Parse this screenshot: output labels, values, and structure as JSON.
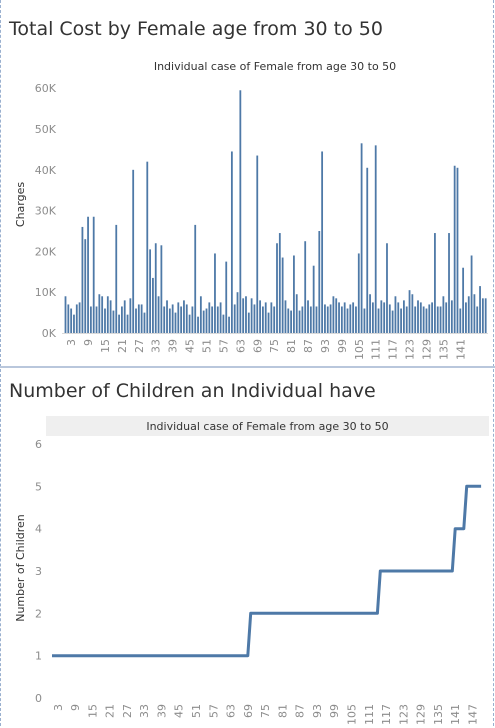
{
  "colors": {
    "mark": "#4e79a7",
    "axis_text": "#8c8c8c",
    "grid": "#e6e6e6",
    "header_bg": "#efefef"
  },
  "panel1": {
    "title": "Total Cost by Female age from 30 to 50"
  },
  "panel2": {
    "title": "Number of Children an Individual have"
  },
  "chart_data": [
    {
      "type": "bar",
      "header": "Individual case of Female from age 30 to 50",
      "ylabel": "Charges",
      "ylim": [
        0,
        63000
      ],
      "yticks": [
        0,
        10000,
        20000,
        30000,
        40000,
        50000,
        60000
      ],
      "ytick_labels": [
        "0K",
        "10K",
        "20K",
        "30K",
        "40K",
        "50K",
        "60K"
      ],
      "xtick_labels": [
        "3",
        "9",
        "15",
        "21",
        "27",
        "33",
        "39",
        "45",
        "51",
        "57",
        "63",
        "69",
        "75",
        "81",
        "87",
        "93",
        "99",
        "105",
        "111",
        "117",
        "123",
        "129",
        "135",
        "141"
      ],
      "grid": false,
      "x": [
        1,
        2,
        3,
        4,
        5,
        6,
        7,
        8,
        9,
        10,
        11,
        12,
        13,
        14,
        15,
        16,
        17,
        18,
        19,
        20,
        21,
        22,
        23,
        24,
        25,
        26,
        27,
        28,
        29,
        30,
        31,
        32,
        33,
        34,
        35,
        36,
        37,
        38,
        39,
        40,
        41,
        42,
        43,
        44,
        45,
        46,
        47,
        48,
        49,
        50,
        51,
        52,
        53,
        54,
        55,
        56,
        57,
        58,
        59,
        60,
        61,
        62,
        63,
        64,
        65,
        66,
        67,
        68,
        69,
        70,
        71,
        72,
        73,
        74,
        75,
        76,
        77,
        78,
        79,
        80,
        81,
        82,
        83,
        84,
        85,
        86,
        87,
        88,
        89,
        90,
        91,
        92,
        93,
        94,
        95,
        96,
        97,
        98,
        99,
        100,
        101,
        102,
        103,
        104,
        105,
        106,
        107,
        108,
        109,
        110,
        111,
        112,
        113,
        114,
        115,
        116,
        117,
        118,
        119,
        120,
        121,
        122,
        123,
        124,
        125,
        126,
        127,
        128,
        129,
        130,
        131,
        132,
        133,
        134,
        135,
        136,
        137,
        138,
        139,
        140,
        141,
        142,
        143,
        144,
        145,
        146,
        147,
        148,
        149,
        150
      ],
      "values": [
        9000,
        7000,
        6000,
        4500,
        7000,
        7500,
        26000,
        23000,
        28500,
        6500,
        28500,
        6500,
        9500,
        9000,
        6000,
        9000,
        8000,
        5500,
        26500,
        4500,
        6500,
        8000,
        4500,
        8500,
        40000,
        6000,
        7000,
        7000,
        5000,
        42000,
        20500,
        13500,
        22000,
        9000,
        21500,
        6500,
        8000,
        6000,
        7000,
        5000,
        7500,
        6500,
        8000,
        7000,
        4500,
        6500,
        26500,
        4000,
        9000,
        5500,
        6000,
        7500,
        6500,
        19500,
        6500,
        7500,
        4500,
        17500,
        4000,
        44500,
        7000,
        10000,
        59500,
        8500,
        9000,
        5000,
        8500,
        7000,
        43500,
        8000,
        6500,
        7500,
        5000,
        7500,
        6500,
        22000,
        24500,
        18500,
        8000,
        6000,
        5500,
        19000,
        9500,
        5500,
        6500,
        22500,
        8000,
        6500,
        16500,
        6500,
        25000,
        44500,
        7000,
        6500,
        7000,
        9000,
        8500,
        7500,
        6500,
        7500,
        6000,
        7000,
        7500,
        6500,
        19500,
        46500,
        6000,
        40500,
        9500,
        7500,
        46000,
        6000,
        8000,
        7500,
        22000,
        7000,
        5500,
        9000,
        7500,
        6000,
        8000,
        6500,
        10500,
        9500,
        6500,
        8000,
        7500,
        6500,
        6000,
        7000,
        7500,
        24500,
        6500,
        6500,
        9000,
        7500,
        24500,
        8000,
        41000,
        40500,
        6000,
        16000,
        7500,
        9000,
        19000,
        9500,
        6500,
        11500,
        8500,
        8500
      ]
    },
    {
      "type": "line",
      "header": "Individual case of Female from age 30 to 50",
      "ylabel": "Number of Children",
      "ylim": [
        0,
        6
      ],
      "yticks": [
        0,
        1,
        2,
        3,
        4,
        5,
        6
      ],
      "xtick_labels": [
        "3",
        "9",
        "15",
        "21",
        "27",
        "33",
        "39",
        "45",
        "51",
        "57",
        "63",
        "69",
        "75",
        "81",
        "87",
        "93",
        "99",
        "105",
        "111",
        "117",
        "123",
        "129",
        "135",
        "141",
        "147"
      ],
      "grid": false,
      "x": [
        1,
        69,
        70,
        114,
        115,
        140,
        141,
        144,
        145,
        150
      ],
      "y": [
        1,
        1,
        2,
        2,
        3,
        3,
        4,
        4,
        5,
        5
      ]
    }
  ]
}
